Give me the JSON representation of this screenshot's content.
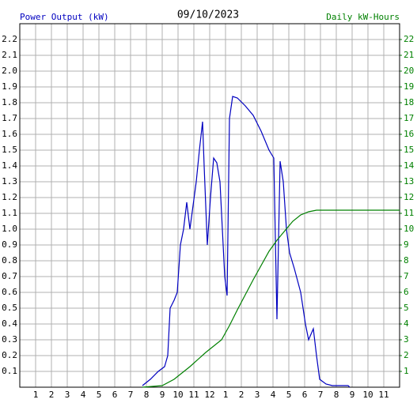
{
  "chart_data": {
    "type": "line",
    "title": "09/10/2023",
    "y_label": "Power Output (kW)",
    "y2_label": "Daily kW-Hours",
    "grid": true,
    "xlim": [
      0,
      24
    ],
    "xticks": [
      1,
      2,
      3,
      4,
      5,
      6,
      7,
      8,
      9,
      10,
      11,
      12,
      {
        "value": 13,
        "label": "1"
      },
      {
        "value": 14,
        "label": "2"
      },
      {
        "value": 15,
        "label": "3"
      },
      {
        "value": 16,
        "label": "4"
      },
      {
        "value": 17,
        "label": "5"
      },
      {
        "value": 18,
        "label": "6"
      },
      {
        "value": 19,
        "label": "7"
      },
      {
        "value": 20,
        "label": "8"
      },
      {
        "value": 21,
        "label": "9"
      },
      {
        "value": 22,
        "label": "10"
      },
      {
        "value": 23,
        "label": "11"
      }
    ],
    "ylim": [
      0,
      2.3
    ],
    "yticks": [
      0.1,
      0.2,
      0.3,
      0.4,
      0.5,
      0.6,
      0.7,
      0.8,
      0.9,
      {
        "value": 1,
        "label": "1.0"
      },
      1.1,
      1.2,
      1.3,
      1.4,
      1.5,
      1.6,
      1.7,
      1.8,
      1.9,
      {
        "value": 2,
        "label": "2.0"
      },
      2.1,
      2.2
    ],
    "y2lim": [
      0,
      23
    ],
    "y2ticks": [
      1,
      2,
      3,
      4,
      5,
      6,
      7,
      8,
      9,
      10,
      11,
      12,
      13,
      14,
      15,
      16,
      17,
      18,
      19,
      20,
      21,
      22
    ],
    "series": [
      {
        "name": "Power Output",
        "color": "#0000c0",
        "x": [
          7.75,
          8.25,
          8.75,
          9.15,
          9.35,
          9.5,
          9.75,
          9.95,
          10.15,
          10.35,
          10.55,
          10.75,
          10.95,
          11.15,
          11.35,
          11.55,
          11.65,
          11.85,
          12.05,
          12.25,
          12.45,
          12.65,
          12.95,
          13.1,
          13.25,
          13.45,
          13.75,
          14.25,
          14.75,
          15.25,
          15.75,
          16.05,
          16.25,
          16.45,
          16.65,
          16.85,
          17.05,
          17.35,
          17.75,
          18.05,
          18.25,
          18.55,
          18.75,
          18.95,
          19.35,
          19.75,
          20.75,
          20.85
        ],
        "values": [
          0.01,
          0.05,
          0.1,
          0.13,
          0.2,
          0.5,
          0.55,
          0.6,
          0.9,
          1.0,
          1.17,
          1.0,
          1.15,
          1.3,
          1.5,
          1.68,
          1.4,
          0.9,
          1.2,
          1.45,
          1.42,
          1.3,
          0.7,
          0.58,
          1.7,
          1.84,
          1.83,
          1.78,
          1.72,
          1.62,
          1.5,
          1.45,
          0.43,
          1.43,
          1.3,
          1.0,
          0.85,
          0.75,
          0.6,
          0.4,
          0.3,
          0.37,
          0.2,
          0.05,
          0.02,
          0.01,
          0.01,
          0
        ]
      },
      {
        "name": "Daily kW-Hours",
        "color": "#008000",
        "axis": "y2",
        "x": [
          7.75,
          9,
          9.75,
          10.75,
          11.75,
          12.75,
          13.25,
          13.75,
          14.75,
          15.75,
          16.25,
          16.75,
          17.25,
          17.75,
          18.25,
          18.75,
          24
        ],
        "values": [
          0,
          0.1,
          0.5,
          1.3,
          2.2,
          3.0,
          3.9,
          4.9,
          6.8,
          8.6,
          9.3,
          9.9,
          10.5,
          10.9,
          11.1,
          11.2,
          11.2
        ]
      }
    ]
  }
}
